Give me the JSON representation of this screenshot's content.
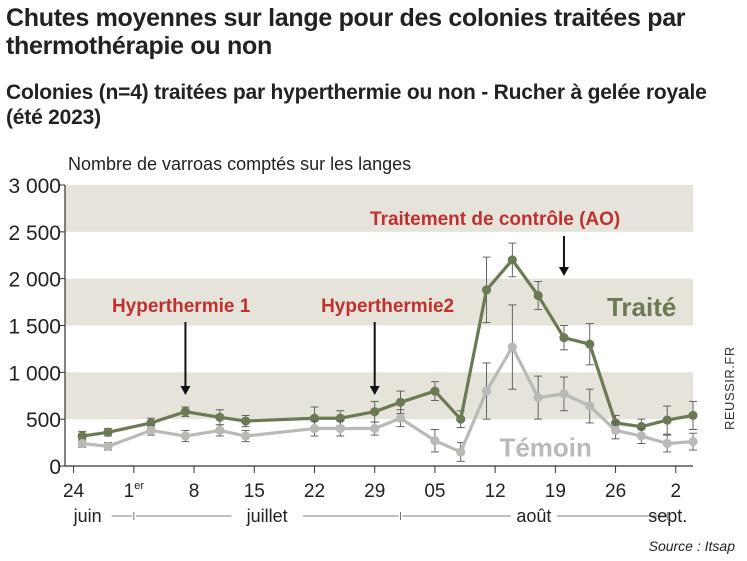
{
  "title": "Chutes moyennes sur lange pour des colonies traitées par thermothérapie ou non",
  "subtitle": "Colonies (n=4) traitées par hyperthermie ou non - Rucher à gelée royale (été 2023)",
  "source": "Source : Itsap",
  "side_credit": "REUSSIR.FR",
  "chart_data": {
    "type": "line",
    "ylabel": "Nombre de varroas comptés sur les langes",
    "ylim": [
      0,
      3000
    ],
    "y_ticks": [
      0,
      500,
      1000,
      1500,
      2000,
      2500,
      3000
    ],
    "y_tick_labels": [
      "0",
      "500",
      "1 000",
      "1 500",
      "2 000",
      "2 500",
      "3 000"
    ],
    "xlim": [
      -1,
      72
    ],
    "x_ticks": [
      {
        "day": 0,
        "label": "24"
      },
      {
        "day": 7,
        "label": "1",
        "sup": "er"
      },
      {
        "day": 14,
        "label": "8"
      },
      {
        "day": 21,
        "label": "15"
      },
      {
        "day": 28,
        "label": "22"
      },
      {
        "day": 35,
        "label": "29"
      },
      {
        "day": 42,
        "label": "05"
      },
      {
        "day": 49,
        "label": "12"
      },
      {
        "day": 56,
        "label": "19"
      },
      {
        "day": 63,
        "label": "26"
      },
      {
        "day": 70,
        "label": "2"
      }
    ],
    "months": [
      {
        "label": "juin",
        "from": 0,
        "to": 7
      },
      {
        "label": "juillet",
        "from": 7,
        "to": 38
      },
      {
        "label": "août",
        "from": 38,
        "to": 69
      },
      {
        "label": "sept.",
        "from": 69,
        "to": 72
      }
    ],
    "bands": [
      [
        500,
        1000
      ],
      [
        1500,
        2000
      ],
      [
        2500,
        3000
      ]
    ],
    "band_color": "#e5e3da",
    "series": [
      {
        "name": "Traité",
        "color": "#6b7a55",
        "x": [
          1,
          4,
          9,
          13,
          17,
          20,
          28,
          31,
          35,
          38,
          42,
          45,
          48,
          51,
          54,
          57,
          60,
          63,
          66,
          69,
          72
        ],
        "y": [
          320,
          360,
          460,
          580,
          520,
          480,
          510,
          510,
          580,
          680,
          800,
          500,
          1880,
          2200,
          1820,
          1370,
          1300,
          460,
          420,
          490,
          540
        ],
        "err": [
          50,
          40,
          50,
          50,
          80,
          60,
          120,
          80,
          110,
          120,
          100,
          90,
          350,
          180,
          150,
          130,
          220,
          80,
          80,
          150,
          150
        ]
      },
      {
        "name": "Témoin",
        "color": "#b9bab6",
        "x": [
          1,
          4,
          9,
          13,
          17,
          20,
          28,
          31,
          35,
          38,
          42,
          45,
          48,
          51,
          54,
          57,
          60,
          63,
          66,
          69,
          72
        ],
        "y": [
          240,
          210,
          380,
          320,
          380,
          320,
          400,
          400,
          400,
          510,
          270,
          150,
          800,
          1270,
          730,
          770,
          640,
          380,
          320,
          240,
          260
        ],
        "err": [
          40,
          40,
          50,
          60,
          60,
          60,
          80,
          80,
          70,
          90,
          120,
          100,
          300,
          450,
          230,
          180,
          180,
          90,
          80,
          90,
          90
        ]
      }
    ],
    "annotations": [
      {
        "text": "Hyperthermie 1",
        "x": 13,
        "y": 580,
        "color": "#c0302f"
      },
      {
        "text": "Hyperthermie2",
        "x": 35,
        "y": 580,
        "color": "#c0302f"
      },
      {
        "text": "Traitement de contrôle (AO)",
        "x": 57,
        "y": 1820,
        "color": "#c0302f"
      }
    ]
  }
}
